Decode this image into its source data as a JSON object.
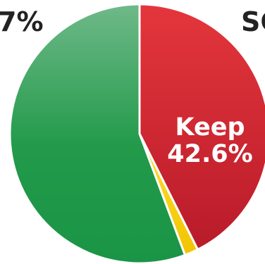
{
  "chart_data": {
    "type": "pie",
    "slices": [
      {
        "label": "Keep",
        "value": 42.6,
        "display": "42.6%",
        "color": "#c8202c"
      },
      {
        "label": "",
        "value": 1.7,
        "display": "",
        "color": "#f5cf0a"
      },
      {
        "label": "",
        "value": 55.7,
        "display": "",
        "color": "#2a9a4e"
      }
    ],
    "cropped_labels": {
      "top_left": "7%",
      "top_right": "SC"
    }
  }
}
